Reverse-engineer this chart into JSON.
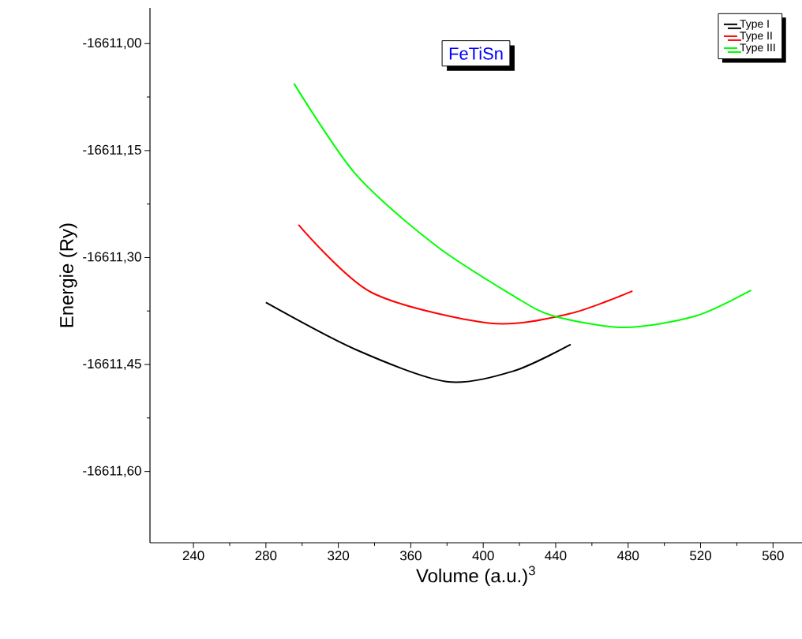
{
  "chart_data": {
    "type": "line",
    "xlabel": "Volume (a.u.)$^{3}$",
    "ylabel": "Energie (Ry)",
    "annotations": [
      "FeTiSn"
    ],
    "xlim": [
      216,
      576
    ],
    "xticks": [
      240,
      280,
      320,
      360,
      400,
      440,
      480,
      520,
      560
    ],
    "ylim": [
      -16611.7,
      -16610.95
    ],
    "yticks": [
      {
        "value": -16611.0,
        "label": "-16611,00"
      },
      {
        "value": -16611.15,
        "label": "-16611,15"
      },
      {
        "value": -16611.3,
        "label": "-16611,30"
      },
      {
        "value": -16611.45,
        "label": "-16611,45"
      },
      {
        "value": -16611.6,
        "label": "-16611,60"
      }
    ],
    "legend": "top right",
    "grid": false,
    "marker": "none",
    "line_style": "solid",
    "series": [
      {
        "name": "Type I",
        "color": "#000000",
        "x": [
          280,
          329.5,
          379.7,
          416.9,
          448.3
        ],
        "values": [
          -16611.363,
          -16611.429,
          -16611.474,
          -16611.459,
          -16611.422
        ]
      },
      {
        "name": "Type II",
        "color": "#ff0000",
        "x": [
          298,
          338.3,
          403.8,
          447.4,
          482.4
        ],
        "values": [
          -16611.254,
          -16611.349,
          -16611.392,
          -16611.379,
          -16611.347
        ]
      },
      {
        "name": "Type III",
        "color": "#00ff00",
        "x": [
          295.5,
          329.5,
          373.2,
          416.9,
          438.7,
          478,
          517.3,
          547.9
        ],
        "values": [
          -16611.056,
          -16611.183,
          -16611.282,
          -16611.354,
          -16611.382,
          -16611.398,
          -16611.382,
          -16611.346
        ]
      }
    ]
  }
}
